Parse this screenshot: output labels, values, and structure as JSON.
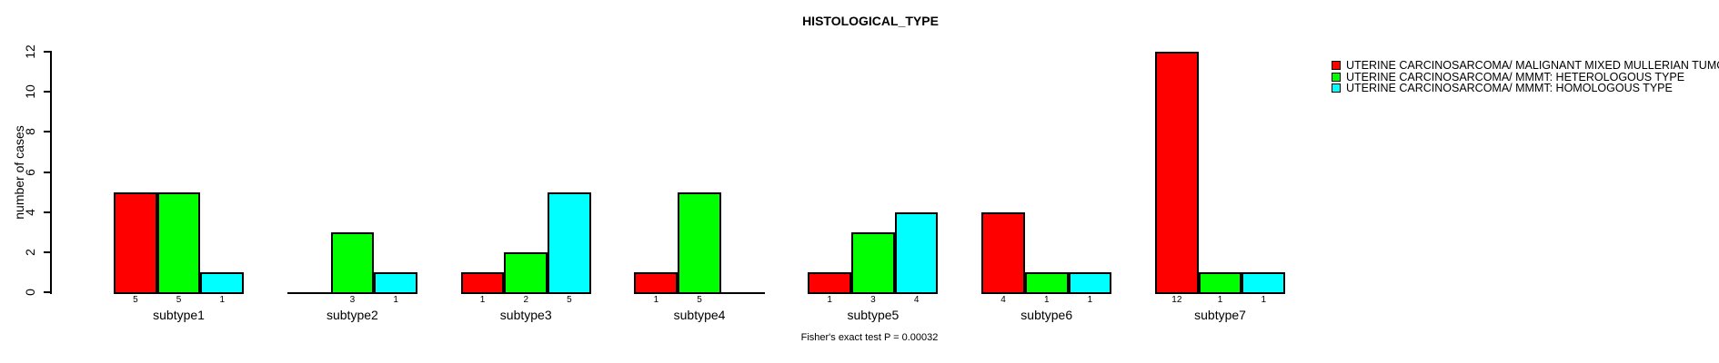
{
  "chart_data": {
    "type": "bar",
    "title": "HISTOLOGICAL_TYPE",
    "ylabel": "number of cases",
    "xlabel": "",
    "ylim": [
      0,
      12
    ],
    "yticks": [
      0,
      2,
      4,
      6,
      8,
      10,
      12
    ],
    "grid": false,
    "legend_position": "top-right",
    "bar_value_labels": "shown under each bar, omitted when value is 0",
    "categories": [
      "subtype1",
      "subtype2",
      "subtype3",
      "subtype4",
      "subtype5",
      "subtype6",
      "subtype7"
    ],
    "series": [
      {
        "name": "UTERINE CARCINOSARCOMA/ MALIGNANT MIXED MULLERIAN TUMOR",
        "color": "#FF0000",
        "values": [
          5,
          0,
          1,
          1,
          1,
          4,
          12
        ]
      },
      {
        "name": "UTERINE CARCINOSARCOMA/ MMMT: HETEROLOGOUS TYPE",
        "color": "#00FF00",
        "values": [
          5,
          3,
          2,
          5,
          3,
          1,
          1
        ]
      },
      {
        "name": "UTERINE CARCINOSARCOMA/ MMMT: HOMOLOGOUS TYPE",
        "color": "#00FFFF",
        "values": [
          1,
          1,
          5,
          0,
          4,
          1,
          1
        ]
      }
    ],
    "annotation": "Fisher's exact test P = 0.00032"
  }
}
